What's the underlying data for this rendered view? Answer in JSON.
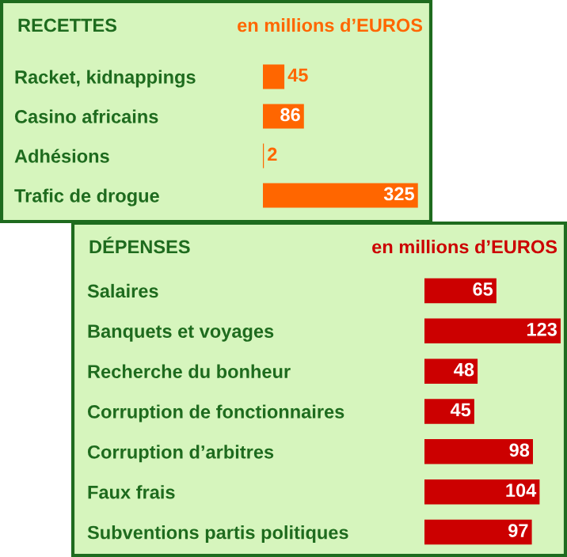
{
  "chart_data": [
    {
      "type": "bar",
      "orientation": "horizontal",
      "title": "RECETTES",
      "subtitle": "en millions d’EUROS",
      "color": "#ff6600",
      "data_labels": true,
      "categories": [
        "Racket, kidnappings",
        "Casino africains",
        "Adhésions",
        "Trafic de drogue"
      ],
      "values": [
        45,
        86,
        2,
        325
      ]
    },
    {
      "type": "bar",
      "orientation": "horizontal",
      "title": "DÉPENSES",
      "subtitle": "en millions d’EUROS",
      "color": "#cc0000",
      "data_labels": true,
      "categories": [
        "Salaires",
        "Banquets et voyages",
        "Recherche du bonheur",
        "Corruption de fonctionnaires",
        "Corruption d’arbitres",
        "Faux frais",
        "Subventions partis politiques"
      ],
      "values": [
        65,
        123,
        48,
        45,
        98,
        104,
        97
      ]
    }
  ]
}
